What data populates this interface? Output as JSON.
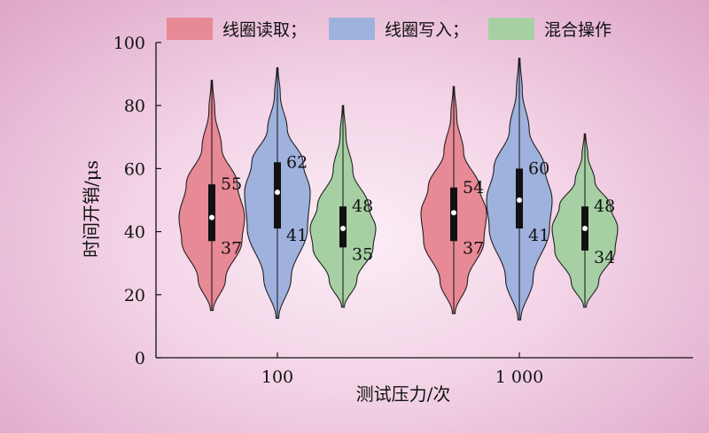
{
  "chart_data": {
    "type": "violin",
    "xlabel": "测试压力/次",
    "ylabel": "时间开销/μs",
    "ylim": [
      0,
      100
    ],
    "yticks": [
      0,
      20,
      40,
      60,
      80,
      100
    ],
    "categories": [
      "100",
      "1 000"
    ],
    "legend_position": "top-right",
    "series": [
      {
        "name": "线圈读取；",
        "color": "#e88996",
        "groups": [
          {
            "category": "100",
            "min": 15,
            "max": 88,
            "q1": 37,
            "q3": 55,
            "median": 44.5
          },
          {
            "category": "1 000",
            "min": 14,
            "max": 86,
            "q1": 37,
            "q3": 54,
            "median": 46
          }
        ]
      },
      {
        "name": "线圈写入；",
        "color": "#9fb1dd",
        "groups": [
          {
            "category": "100",
            "min": 12.5,
            "max": 92,
            "q1": 41,
            "q3": 62,
            "median": 52.5
          },
          {
            "category": "1 000",
            "min": 12,
            "max": 95,
            "q1": 41,
            "q3": 60,
            "median": 50
          }
        ]
      },
      {
        "name": "混合操作",
        "color": "#a6d0a4",
        "groups": [
          {
            "category": "100",
            "min": 16,
            "max": 80,
            "q1": 35,
            "q3": 48,
            "median": 41
          },
          {
            "category": "1 000",
            "min": 16,
            "max": 71,
            "q1": 34,
            "q3": 48,
            "median": 41
          }
        ]
      }
    ]
  }
}
